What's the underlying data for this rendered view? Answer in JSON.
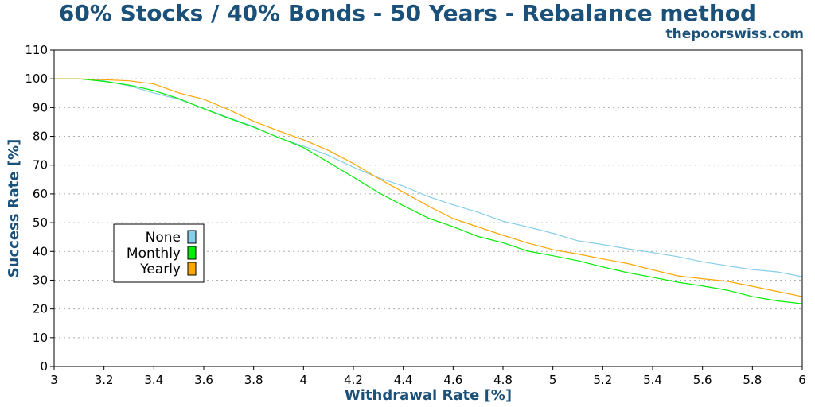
{
  "title": "60% Stocks / 40% Bonds - 50 Years - Rebalance method",
  "site": "thepoorswiss.com",
  "colors": {
    "title": "#1b5179",
    "none": "#87ceeb",
    "monthly": "#00ee00",
    "yearly": "#ffa500"
  },
  "chart_data": {
    "type": "line",
    "title": "60% Stocks / 40% Bonds - 50 Years - Rebalance method",
    "xlabel": "Withdrawal Rate [%]",
    "ylabel": "Success Rate [%]",
    "xlim": [
      3,
      6
    ],
    "ylim": [
      0,
      110
    ],
    "xticks": [
      "3",
      "3.2",
      "3.4",
      "3.6",
      "3.8",
      "4",
      "4.2",
      "4.4",
      "4.6",
      "4.8",
      "5",
      "5.2",
      "5.4",
      "5.6",
      "5.8",
      "6"
    ],
    "yticks": [
      "0",
      "10",
      "20",
      "30",
      "40",
      "50",
      "60",
      "70",
      "80",
      "90",
      "100",
      "110"
    ],
    "grid": true,
    "legend_position": "left",
    "x": [
      3.0,
      3.1,
      3.2,
      3.3,
      3.4,
      3.5,
      3.6,
      3.7,
      3.8,
      3.9,
      4.0,
      4.1,
      4.2,
      4.3,
      4.4,
      4.5,
      4.6,
      4.7,
      4.8,
      4.9,
      5.0,
      5.1,
      5.2,
      5.3,
      5.4,
      5.5,
      5.6,
      5.7,
      5.8,
      5.9,
      6.0
    ],
    "series": [
      {
        "name": "None",
        "color": "#87ceeb",
        "values": [
          100,
          100,
          99.3,
          97.6,
          95.1,
          92.9,
          89.7,
          86.5,
          83.4,
          79.5,
          76.6,
          73.4,
          69.3,
          65.6,
          62.7,
          59.1,
          56.2,
          53.6,
          50.5,
          48.5,
          46.3,
          43.7,
          42.4,
          40.9,
          39.6,
          38.2,
          36.4,
          35.0,
          33.7,
          32.9,
          31.2
        ]
      },
      {
        "name": "Monthly",
        "color": "#00ee00",
        "values": [
          100,
          100,
          99.1,
          97.8,
          95.9,
          93.1,
          89.6,
          86.3,
          83.2,
          79.6,
          76.1,
          71.0,
          65.8,
          60.5,
          55.9,
          51.6,
          48.6,
          45.2,
          43.0,
          40.1,
          38.5,
          36.8,
          34.6,
          32.6,
          31.0,
          29.3,
          28.0,
          26.5,
          24.3,
          22.8,
          21.8
        ]
      },
      {
        "name": "Yearly",
        "color": "#ffa500",
        "values": [
          100,
          100,
          99.7,
          99.3,
          98.2,
          95.1,
          92.9,
          89.3,
          85.2,
          81.9,
          78.8,
          75.1,
          70.6,
          65.4,
          60.6,
          55.8,
          51.4,
          48.5,
          45.6,
          42.9,
          40.6,
          39.1,
          37.4,
          35.8,
          33.6,
          31.5,
          30.5,
          29.6,
          27.9,
          26.1,
          24.3
        ]
      }
    ]
  }
}
